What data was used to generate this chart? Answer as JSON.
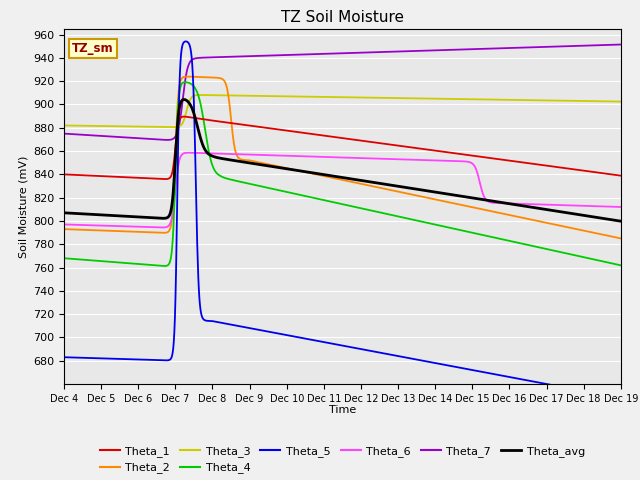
{
  "title": "TZ Soil Moisture",
  "xlabel": "Time",
  "ylabel": "Soil Moisture (mV)",
  "ylim": [
    660,
    965
  ],
  "yticks": [
    680,
    700,
    720,
    740,
    760,
    780,
    800,
    820,
    840,
    860,
    880,
    900,
    920,
    940,
    960
  ],
  "bg_color": "#e8e8e8",
  "annotation_text": "TZ_sm",
  "annotation_bg": "#ffffcc",
  "annotation_border": "#cc9900",
  "series": {
    "Theta_1": {
      "color": "#dd0000",
      "lw": 1.3
    },
    "Theta_2": {
      "color": "#ff8800",
      "lw": 1.3
    },
    "Theta_3": {
      "color": "#cccc00",
      "lw": 1.3
    },
    "Theta_4": {
      "color": "#00cc00",
      "lw": 1.3
    },
    "Theta_5": {
      "color": "#0000ee",
      "lw": 1.3
    },
    "Theta_6": {
      "color": "#ff44ff",
      "lw": 1.3
    },
    "Theta_7": {
      "color": "#9900cc",
      "lw": 1.3
    },
    "Theta_avg": {
      "color": "#000000",
      "lw": 2.0
    }
  },
  "xtick_labels": [
    "Dec 4",
    "Dec 5",
    "Dec 6",
    "Dec 7",
    "Dec 8",
    "Dec 9",
    "Dec 10",
    "Dec 11",
    "Dec 12",
    "Dec 13",
    "Dec 14",
    "Dec 15",
    "Dec 16",
    "Dec 17",
    "Dec 18",
    "Dec 19"
  ]
}
